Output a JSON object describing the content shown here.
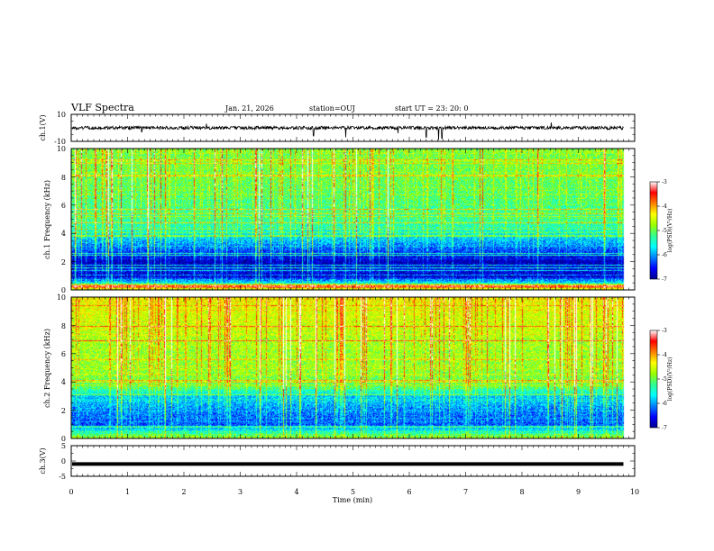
{
  "header": {
    "title": "VLF Spectra",
    "date": "Jan. 21, 2026",
    "station": "station=OUJ",
    "start": "start UT =  23: 20: 0"
  },
  "colorbar": {
    "label": "log(PSD)(V²/Hz)",
    "ticks": [
      "-3",
      "-4",
      "-5",
      "-6",
      "-7"
    ],
    "stops": [
      "#000090",
      "#0000ff",
      "#0080ff",
      "#00ffff",
      "#30ff90",
      "#9aff00",
      "#ffff00",
      "#ff8000",
      "#ff0000",
      "#ffffff"
    ]
  },
  "chart_data": [
    {
      "type": "line",
      "name": "ch1-waveform",
      "ylabel": "ch.1(V)",
      "ylim": [
        -10,
        10
      ],
      "ytick_labels": [
        "10",
        "-10"
      ],
      "baseline": 0,
      "xlim": [
        0,
        10
      ],
      "data_extent_min": 9.8,
      "spikes": [
        {
          "t": 1.25,
          "v": -3
        },
        {
          "t": 2.4,
          "v": 3
        },
        {
          "t": 4.3,
          "v": -6
        },
        {
          "t": 4.87,
          "v": -7
        },
        {
          "t": 5.8,
          "v": -4
        },
        {
          "t": 6.3,
          "v": -7
        },
        {
          "t": 6.52,
          "v": -9
        },
        {
          "t": 6.58,
          "v": -8
        },
        {
          "t": 8.52,
          "v": 4
        }
      ]
    },
    {
      "type": "heatmap",
      "name": "ch1-spectrogram",
      "ylabel": "ch.1 Frequency (kHz)",
      "ylim": [
        0,
        10
      ],
      "ytick_labels": [
        "0",
        "2",
        "4",
        "6",
        "8",
        "10"
      ],
      "xlim": [
        0,
        10
      ],
      "data_extent_min": 9.8,
      "colorbar_range": [
        -7,
        -3
      ],
      "background_psd": [
        {
          "f": 0.1,
          "psd": -4.6
        },
        {
          "f": 0.3,
          "psd": -3.2
        },
        {
          "f": 0.5,
          "psd": -5.6
        },
        {
          "f": 1.0,
          "psd": -6.8
        },
        {
          "f": 1.5,
          "psd": -6.6
        },
        {
          "f": 2.0,
          "psd": -6.9
        },
        {
          "f": 2.5,
          "psd": -6.5
        },
        {
          "f": 3.0,
          "psd": -6.2
        },
        {
          "f": 3.5,
          "psd": -5.9
        },
        {
          "f": 4.0,
          "psd": -5.6
        },
        {
          "f": 4.5,
          "psd": -5.4
        },
        {
          "f": 5.0,
          "psd": -5.3
        },
        {
          "f": 6.0,
          "psd": -5.2
        },
        {
          "f": 7.0,
          "psd": -5.1
        },
        {
          "f": 8.0,
          "psd": -5.0
        },
        {
          "f": 9.0,
          "psd": -4.95
        },
        {
          "f": 10.0,
          "psd": -5.0
        }
      ],
      "quiet_periods_min": [
        [
          1.5,
          3.3
        ],
        [
          5.8,
          9.8
        ]
      ]
    },
    {
      "type": "heatmap",
      "name": "ch2-spectrogram",
      "ylabel": "ch.2 Frequency (kHz)",
      "ylim": [
        0,
        10
      ],
      "ytick_labels": [
        "0",
        "2",
        "4",
        "6",
        "8",
        "10"
      ],
      "xlim": [
        0,
        10
      ],
      "data_extent_min": 9.8,
      "colorbar_range": [
        -7,
        -3
      ],
      "background_psd": [
        {
          "f": 0.1,
          "psd": -4.8
        },
        {
          "f": 0.3,
          "psd": -5.2
        },
        {
          "f": 0.5,
          "psd": -5.5
        },
        {
          "f": 1.0,
          "psd": -6.3
        },
        {
          "f": 1.5,
          "psd": -6.2
        },
        {
          "f": 2.0,
          "psd": -6.1
        },
        {
          "f": 2.5,
          "psd": -5.9
        },
        {
          "f": 3.0,
          "psd": -5.8
        },
        {
          "f": 3.5,
          "psd": -5.3
        },
        {
          "f": 4.0,
          "psd": -5.0
        },
        {
          "f": 5.0,
          "psd": -4.8
        },
        {
          "f": 6.0,
          "psd": -4.8
        },
        {
          "f": 7.0,
          "psd": -4.7
        },
        {
          "f": 8.0,
          "psd": -4.6
        },
        {
          "f": 9.0,
          "psd": -4.5
        },
        {
          "f": 10.0,
          "psd": -4.4
        }
      ],
      "quiet_periods_min": [
        [
          5.8,
          7.2
        ]
      ]
    },
    {
      "type": "line",
      "name": "ch3-waveform",
      "ylabel": "ch.3(V)",
      "ylim": [
        -5,
        5
      ],
      "ytick_labels": [
        "5",
        "0",
        "-5"
      ],
      "baseline": -1.0,
      "xlim": [
        0,
        10
      ],
      "data_extent_min": 9.8,
      "xlabel": "Time (min)",
      "xtick_labels": [
        "0",
        "1",
        "2",
        "3",
        "4",
        "5",
        "6",
        "7",
        "8",
        "9",
        "10"
      ]
    }
  ]
}
